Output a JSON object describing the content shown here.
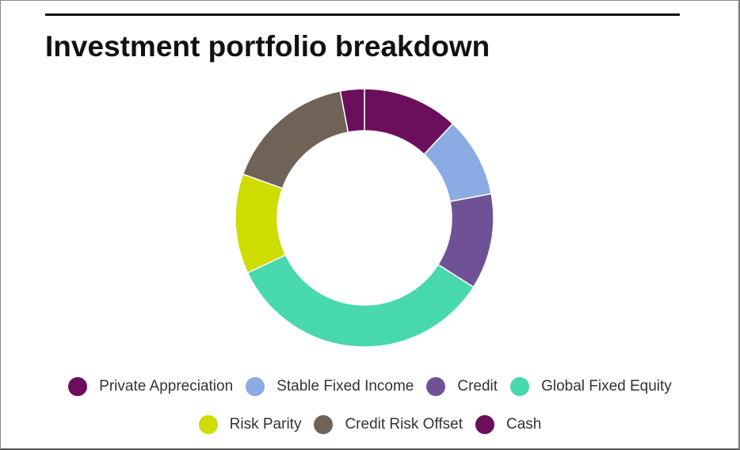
{
  "title": "Investment portfolio breakdown",
  "chart_data": {
    "type": "pie",
    "variant": "donut",
    "title": "Investment portfolio breakdown",
    "categories": [
      "Private Appreciation",
      "Stable Fixed Income",
      "Credit",
      "Global Fixed Equity",
      "Risk Parity",
      "Credit Risk Offset",
      "Cash"
    ],
    "values": [
      12,
      10,
      12,
      34,
      12.5,
      16.5,
      3
    ],
    "unit": "%",
    "colors": [
      "#6b0f5c",
      "#8aabe3",
      "#6f5296",
      "#48d8ad",
      "#cfdc00",
      "#6f6358",
      "#6b0f5c"
    ],
    "start_angle_deg": 0,
    "direction": "clockwise",
    "legend_position": "bottom"
  }
}
